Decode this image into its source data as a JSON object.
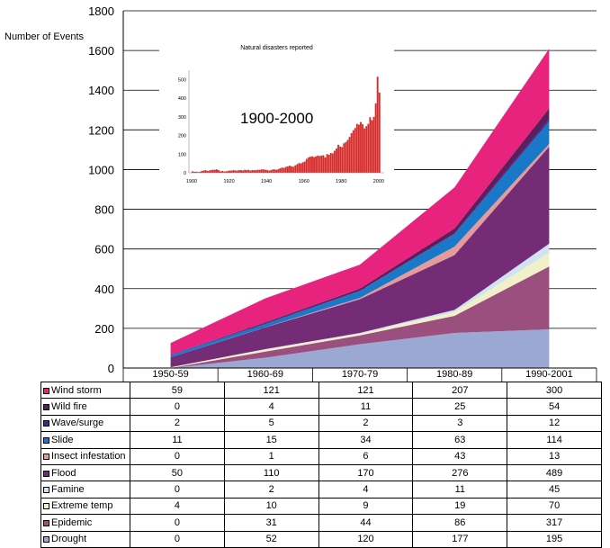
{
  "colors": {
    "Drought": "#9ba8d4",
    "Epidemic": "#9a4f7e",
    "Extreme temp": "#f1f0c9",
    "Famine": "#cfe3f2",
    "Flood": "#742c77",
    "Insect infestation": "#e69a9a",
    "Slide": "#1a78c9",
    "Wave/surge": "#3b2d8a",
    "Wild fire": "#5b1f5d",
    "Wind storm": "#e8237e",
    "inset_bars": "#d62b2b"
  },
  "chart_data": {
    "type": "area",
    "ylabel": "Number of Events",
    "ylim": [
      0,
      1800
    ],
    "yticks": [
      "0",
      "200",
      "400",
      "600",
      "800",
      "1000",
      "1200",
      "1400",
      "1600",
      "1800"
    ],
    "categories": [
      "1950-59",
      "1960-69",
      "1970-79",
      "1980-89",
      "1990-2001"
    ],
    "grid": true,
    "series": [
      {
        "name": "Drought",
        "values": [
          0,
          52,
          120,
          177,
          195
        ]
      },
      {
        "name": "Epidemic",
        "values": [
          0,
          31,
          44,
          86,
          317
        ]
      },
      {
        "name": "Extreme temp",
        "values": [
          4,
          10,
          9,
          19,
          70
        ]
      },
      {
        "name": "Famine",
        "values": [
          0,
          2,
          4,
          11,
          45
        ]
      },
      {
        "name": "Flood",
        "values": [
          50,
          110,
          170,
          276,
          489
        ]
      },
      {
        "name": "Insect infestation",
        "values": [
          0,
          1,
          6,
          43,
          13
        ]
      },
      {
        "name": "Slide",
        "values": [
          11,
          15,
          34,
          63,
          114
        ]
      },
      {
        "name": "Wave/surge",
        "values": [
          2,
          5,
          2,
          3,
          12
        ]
      },
      {
        "name": "Wild fire",
        "values": [
          0,
          4,
          11,
          25,
          54
        ]
      },
      {
        "name": "Wind storm",
        "values": [
          59,
          121,
          121,
          207,
          300
        ]
      }
    ],
    "table_order": [
      "Wind storm",
      "Wild fire",
      "Wave/surge",
      "Slide",
      "Insect infestation",
      "Flood",
      "Famine",
      "Extreme temp",
      "Epidemic",
      "Drought"
    ],
    "inset": {
      "type": "bar",
      "title": "Natural disasters reported",
      "annotation": "1900-2000",
      "xticks": [
        "1900",
        "1920",
        "1940",
        "1960",
        "1980",
        "2000"
      ],
      "yticks": [
        "0",
        "100",
        "200",
        "300",
        "400",
        "500"
      ],
      "ylim": [
        0,
        550
      ],
      "x": [
        1900,
        1901,
        1902,
        1903,
        1904,
        1905,
        1906,
        1907,
        1908,
        1909,
        1910,
        1911,
        1912,
        1913,
        1914,
        1915,
        1916,
        1917,
        1918,
        1919,
        1920,
        1921,
        1922,
        1923,
        1924,
        1925,
        1926,
        1927,
        1928,
        1929,
        1930,
        1931,
        1932,
        1933,
        1934,
        1935,
        1936,
        1937,
        1938,
        1939,
        1940,
        1941,
        1942,
        1943,
        1944,
        1945,
        1946,
        1947,
        1948,
        1949,
        1950,
        1951,
        1952,
        1953,
        1954,
        1955,
        1956,
        1957,
        1958,
        1959,
        1960,
        1961,
        1962,
        1963,
        1964,
        1965,
        1966,
        1967,
        1968,
        1969,
        1970,
        1971,
        1972,
        1973,
        1974,
        1975,
        1976,
        1977,
        1978,
        1979,
        1980,
        1981,
        1982,
        1983,
        1984,
        1985,
        1986,
        1987,
        1988,
        1989,
        1990,
        1991,
        1992,
        1993,
        1994,
        1995,
        1996,
        1997,
        1998,
        1999,
        2000
      ],
      "values": [
        8,
        5,
        6,
        4,
        5,
        10,
        12,
        14,
        10,
        12,
        15,
        16,
        16,
        18,
        14,
        8,
        10,
        7,
        8,
        10,
        12,
        12,
        14,
        12,
        12,
        14,
        14,
        12,
        16,
        14,
        16,
        12,
        14,
        14,
        14,
        16,
        16,
        18,
        18,
        16,
        14,
        12,
        14,
        18,
        18,
        16,
        20,
        24,
        28,
        26,
        32,
        34,
        38,
        34,
        32,
        40,
        46,
        52,
        50,
        56,
        60,
        74,
        82,
        86,
        88,
        84,
        88,
        92,
        90,
        92,
        94,
        82,
        100,
        96,
        106,
        104,
        118,
        130,
        150,
        140,
        138,
        158,
        165,
        176,
        192,
        212,
        228,
        240,
        262,
        258,
        272,
        260,
        238,
        250,
        262,
        298,
        282,
        300,
        372,
        515,
        430
      ]
    }
  }
}
